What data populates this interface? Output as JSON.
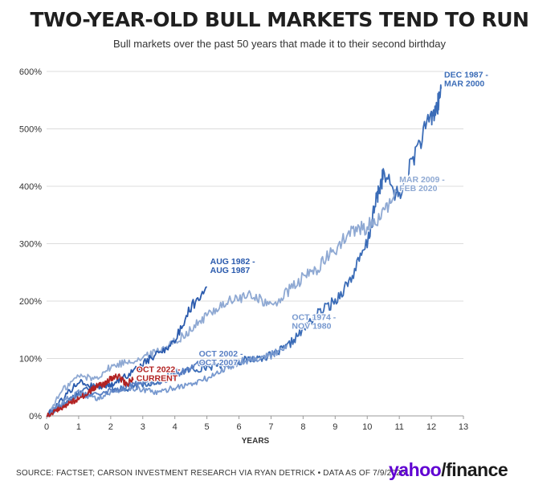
{
  "chart_data": {
    "type": "line",
    "title": "TWO-YEAR-OLD BULL MARKETS TEND TO RUN",
    "subtitle": "Bull markets over the past 50 years that made it to their second birthday",
    "xlabel": "YEARS",
    "ylabel": "",
    "xlim": [
      0,
      13
    ],
    "ylim": [
      0,
      600
    ],
    "x_ticks": [
      0,
      1,
      2,
      3,
      4,
      5,
      6,
      7,
      8,
      9,
      10,
      11,
      12,
      13
    ],
    "y_ticks": [
      0,
      100,
      200,
      300,
      400,
      500,
      600
    ],
    "y_tick_labels": [
      "0%",
      "100%",
      "200%",
      "300%",
      "400%",
      "500%",
      "600%"
    ],
    "grid": "horizontal",
    "series": [
      {
        "name": "DEC 1987 - MAR 2000",
        "label_lines": [
          "DEC 1987 -",
          "MAR 2000"
        ],
        "color": "#3b6cb7",
        "x": [
          0,
          0.5,
          1,
          1.5,
          2,
          2.5,
          3,
          3.5,
          4,
          4.5,
          5,
          5.5,
          6,
          6.5,
          7,
          7.5,
          8,
          8.5,
          9,
          9.5,
          10,
          10.3,
          10.5,
          11,
          11.5,
          12,
          12.2,
          12.3
        ],
        "y": [
          0,
          20,
          40,
          55,
          50,
          45,
          55,
          60,
          75,
          80,
          85,
          90,
          95,
          100,
          105,
          120,
          150,
          180,
          200,
          240,
          300,
          380,
          420,
          380,
          460,
          520,
          540,
          570
        ]
      },
      {
        "name": "MAR 2009 - FEB 2020",
        "label_lines": [
          "MAR 2009 -",
          "FEB 2020"
        ],
        "color": "#8fa9d3",
        "x": [
          0,
          0.5,
          1,
          1.5,
          2,
          2.5,
          3,
          3.5,
          4,
          4.5,
          5,
          5.5,
          6,
          6.5,
          7,
          7.5,
          8,
          8.5,
          9,
          9.5,
          10,
          10.5,
          10.9
        ],
        "y": [
          0,
          45,
          70,
          65,
          85,
          95,
          100,
          115,
          130,
          150,
          175,
          195,
          205,
          210,
          190,
          215,
          240,
          260,
          290,
          320,
          330,
          350,
          390
        ]
      },
      {
        "name": "AUG 1982 - AUG 1987",
        "label_lines": [
          "AUG 1982 -",
          "AUG 1987"
        ],
        "color": "#2a5aad",
        "x": [
          0,
          0.5,
          1,
          1.5,
          2,
          2.5,
          3,
          3.5,
          4,
          4.5,
          5
        ],
        "y": [
          0,
          30,
          60,
          50,
          55,
          70,
          90,
          110,
          130,
          190,
          225
        ]
      },
      {
        "name": "OCT 1974 - NOV 1980",
        "label_lines": [
          "OCT 1974 -",
          "NOV 1980"
        ],
        "color": "#7899cf",
        "x": [
          0,
          0.5,
          1,
          1.5,
          2,
          2.5,
          3,
          3.5,
          4,
          4.5,
          5,
          5.5,
          6,
          6.5,
          7,
          7.5
        ],
        "y": [
          0,
          25,
          40,
          30,
          40,
          50,
          45,
          40,
          50,
          55,
          65,
          80,
          95,
          100,
          105,
          125
        ]
      },
      {
        "name": "OCT 2002 - OCT 2007",
        "label_lines": [
          "OCT 2002 -",
          "OCT 2007"
        ],
        "color": "#5a80c4",
        "x": [
          0,
          0.5,
          1,
          1.5,
          2,
          2.5,
          3,
          3.5,
          4,
          4.5,
          5
        ],
        "y": [
          0,
          20,
          35,
          40,
          45,
          50,
          60,
          60,
          70,
          85,
          95
        ]
      },
      {
        "name": "OCT 2022 - CURRENT",
        "label_lines": [
          "OCT 2022 -",
          "CURRENT"
        ],
        "color": "#b22222",
        "x": [
          0,
          0.3,
          0.5,
          0.8,
          1,
          1.3,
          1.5,
          1.8,
          2,
          2.2,
          2.5,
          2.7
        ],
        "y": [
          0,
          10,
          15,
          25,
          30,
          40,
          50,
          55,
          65,
          70,
          55,
          65
        ]
      }
    ]
  },
  "footer": {
    "source": "SOURCE: FACTSET; CARSON INVESTMENT RESEARCH VIA RYAN DETRICK • DATA AS OF 7/9/2025",
    "logo_yahoo": "yahoo",
    "logo_finance": "/finance"
  }
}
